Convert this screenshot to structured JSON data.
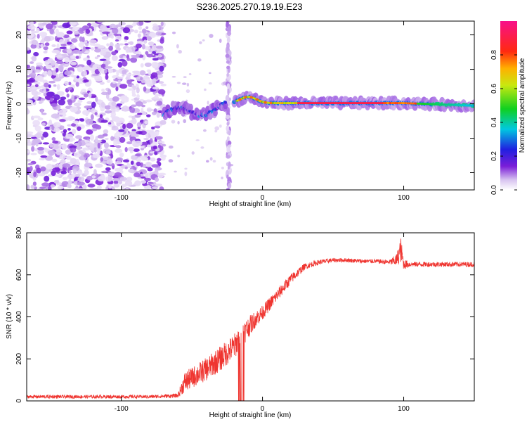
{
  "chart_data": [
    {
      "type": "heatmap",
      "title": "S236.2025.270.19.19.E23",
      "xlabel": "Height of straight line (km)",
      "ylabel": "Frequency (Hz)",
      "xlim": [
        -167,
        150
      ],
      "ylim": [
        -25,
        24
      ],
      "xticks": [
        -100,
        0,
        100
      ],
      "yticks": [
        -20,
        -10,
        0,
        10,
        20
      ],
      "colorbar": {
        "label": "Normalized spectral amplitude",
        "range": [
          0.0,
          1.0
        ],
        "ticks": [
          "0.0",
          "0.2",
          "0.4",
          "0.6",
          "0.8"
        ],
        "colormap": "rainbow (purple-blue-cyan-green-yellow-orange-red-magenta)"
      },
      "features": [
        {
          "name": "noise-region",
          "x_range": [
            -167,
            -70
          ],
          "amplitude": "0.0-0.1"
        },
        {
          "name": "wavy-ridge",
          "x_range": [
            -70,
            -25
          ],
          "frequency": "about -5 to -1 Hz",
          "amplitude": "0.1-0.4"
        },
        {
          "name": "vertical-stripe",
          "x": -24,
          "amplitude": "0.0-0.1"
        },
        {
          "name": "main-ridge",
          "x_range": [
            -20,
            150
          ],
          "frequency": "about 0 Hz",
          "amplitude": "0.2-1.0"
        }
      ]
    },
    {
      "type": "line",
      "xlabel": "Height of straight line (km)",
      "ylabel": "SNR (10 * v/v)",
      "xlim": [
        -167,
        150
      ],
      "ylim": [
        0,
        800
      ],
      "xticks": [
        -100,
        0,
        100
      ],
      "yticks": [
        0,
        200,
        400,
        600,
        800
      ],
      "series": [
        {
          "name": "SNR",
          "color": "#ef3530",
          "x": [
            -167,
            -140,
            -110,
            -80,
            -60,
            -55,
            -50,
            -40,
            -30,
            -20,
            -15,
            -10,
            -5,
            0,
            10,
            20,
            30,
            40,
            50,
            60,
            70,
            80,
            90,
            95,
            98,
            100,
            105,
            110,
            120,
            130,
            140,
            150
          ],
          "values": [
            20,
            20,
            20,
            20,
            25,
            90,
            110,
            150,
            200,
            260,
            310,
            350,
            390,
            420,
            500,
            580,
            640,
            660,
            670,
            670,
            665,
            665,
            660,
            670,
            720,
            650,
            650,
            650,
            650,
            650,
            650,
            650
          ],
          "noise_amplitude": [
            8,
            8,
            8,
            8,
            10,
            50,
            50,
            55,
            60,
            60,
            60,
            50,
            40,
            35,
            30,
            25,
            15,
            12,
            10,
            10,
            10,
            10,
            12,
            30,
            60,
            25,
            12,
            12,
            12,
            12,
            12,
            12
          ],
          "dropouts": [
            {
              "x_range": [
                -17,
                -13
              ],
              "value": 0
            }
          ]
        }
      ]
    }
  ]
}
